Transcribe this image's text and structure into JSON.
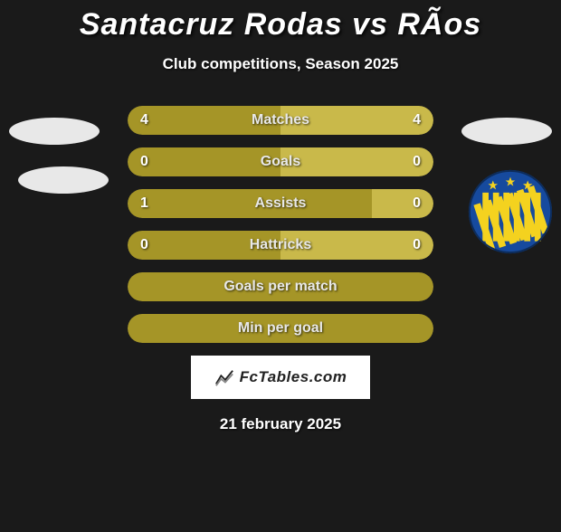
{
  "title": "Santacruz Rodas vs RÃos",
  "subtitle": "Club competitions, Season 2025",
  "colors": {
    "bar_left": "#a59527",
    "bar_right": "#c9b94a",
    "bar_bg": "#2a2a2a",
    "text": "#e8e8e8",
    "logo_blue": "#164a9e",
    "logo_yellow": "#f4d21f"
  },
  "bars": [
    {
      "label": "Matches",
      "left_val": "4",
      "right_val": "4",
      "left_pct": 50,
      "right_pct": 50,
      "show_vals": true
    },
    {
      "label": "Goals",
      "left_val": "0",
      "right_val": "0",
      "left_pct": 50,
      "right_pct": 50,
      "show_vals": true
    },
    {
      "label": "Assists",
      "left_val": "1",
      "right_val": "0",
      "left_pct": 80,
      "right_pct": 20,
      "show_vals": true
    },
    {
      "label": "Hattricks",
      "left_val": "0",
      "right_val": "0",
      "left_pct": 50,
      "right_pct": 50,
      "show_vals": true
    },
    {
      "label": "Goals per match",
      "left_val": "",
      "right_val": "",
      "left_pct": 100,
      "right_pct": 0,
      "show_vals": false
    },
    {
      "label": "Min per goal",
      "left_val": "",
      "right_val": "",
      "left_pct": 100,
      "right_pct": 0,
      "show_vals": false
    }
  ],
  "footer_brand": "FcTables.com",
  "footer_date": "21 february 2025"
}
